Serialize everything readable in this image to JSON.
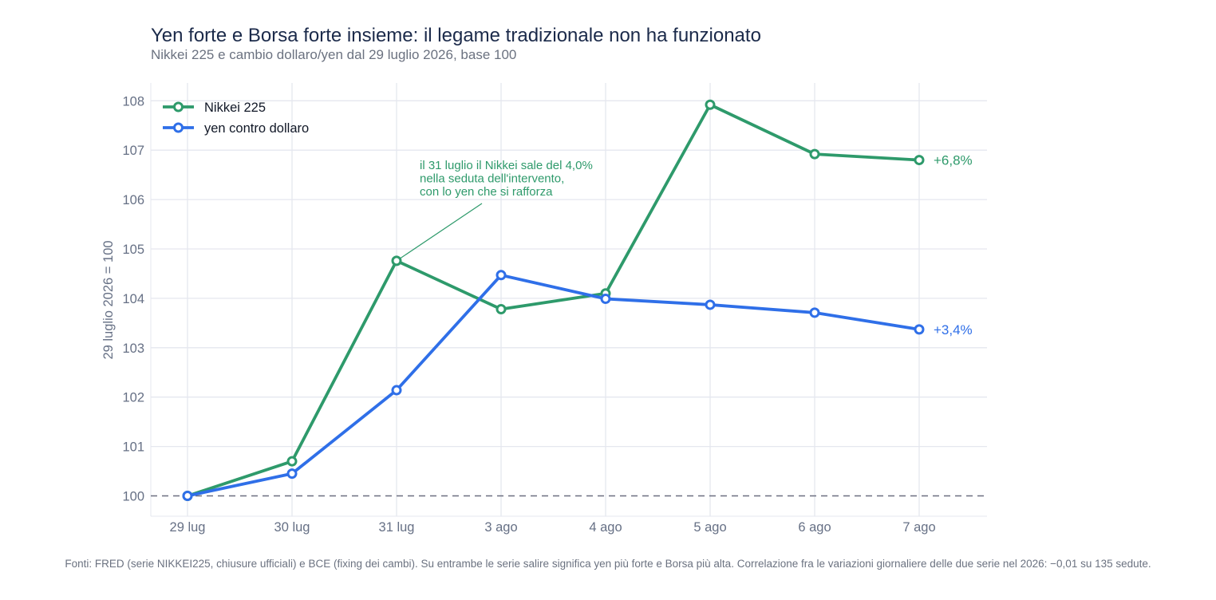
{
  "title": "Yen forte e Borsa forte insieme: il legame tradizionale non ha funzionato",
  "subtitle": "Nikkei 225 e cambio dollaro/yen dal 29 luglio 2026, base 100",
  "source": "Fonti: FRED (serie NIKKEI225, chiusure ufficiali) e BCE (fixing dei cambi). Su entrambe le serie salire significa yen più forte e Borsa più alta. Correlazione fra le variazioni giornaliere delle due serie nel 2026: −0,01 su 135 sedute.",
  "chart_data": {
    "type": "line",
    "title": "Yen forte e Borsa forte insieme: il legame tradizionale non ha funzionato",
    "subtitle": "Nikkei 225 e cambio dollaro/yen dal 29 luglio 2026, base 100",
    "xlabel": "",
    "ylabel": "29 luglio 2026 = 100",
    "categories": [
      "29 lug",
      "30 lug",
      "31 lug",
      "3 ago",
      "4 ago",
      "5 ago",
      "6 ago",
      "7 ago"
    ],
    "y_ticks": [
      "100",
      "101",
      "102",
      "103",
      "104",
      "105",
      "106",
      "107",
      "108"
    ],
    "ylim": [
      99.6,
      108.3
    ],
    "reference_line": 100,
    "grid": true,
    "legend_position": "top-left",
    "series": [
      {
        "name": "Nikkei 225",
        "color": "#2e9a6b",
        "values": [
          100.0,
          100.7,
          104.76,
          103.78,
          104.1,
          107.92,
          106.92,
          106.8
        ],
        "end_label": "+6,8%"
      },
      {
        "name": "yen contro dollaro",
        "color": "#2f6fe8",
        "values": [
          100.0,
          100.45,
          102.14,
          104.47,
          103.99,
          103.87,
          103.71,
          103.37
        ],
        "end_label": "+3,4%"
      }
    ],
    "annotation": {
      "lines": [
        "il 31 luglio il Nikkei sale del 4,0%",
        "nella seduta dell'intervento,",
        "con lo yen che si rafforza"
      ],
      "series": 0,
      "point_index": 2,
      "color": "#2e9a6b"
    }
  }
}
